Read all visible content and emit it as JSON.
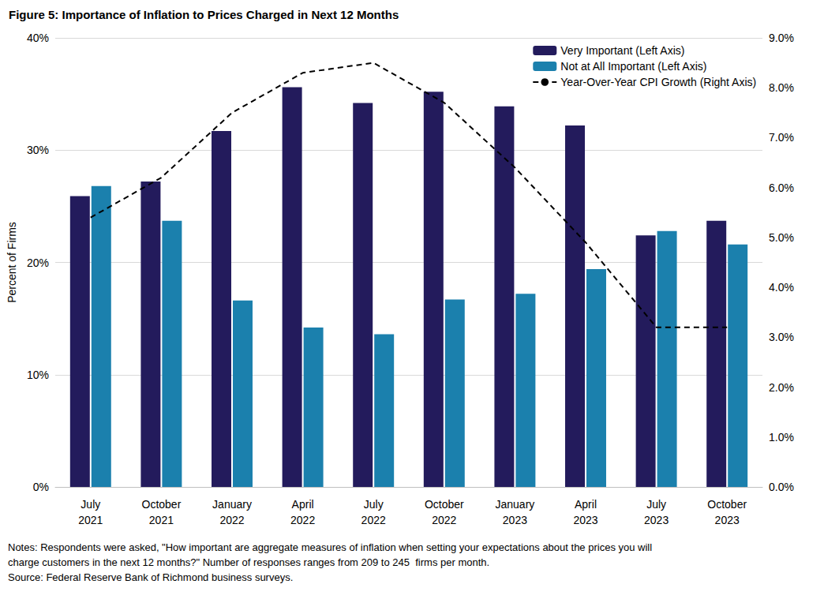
{
  "chart_data": {
    "type": "bar",
    "title": "Figure 5: Importance of Inflation to Prices Charged in Next 12 Months",
    "notes": [
      "Notes: Respondents were asked, \"How important are aggregate measures of inflation when setting your expectations about the prices you will",
      "charge customers in the next 12 months?\" Number of responses ranges from 209 to 245  firms per month."
    ],
    "source": "Source: Federal Reserve Bank of Richmond business surveys.",
    "y_label": "Percent of Firms",
    "categories": [
      "July\n2021",
      "October\n2021",
      "January\n2022",
      "April\n2022",
      "July\n2022",
      "October\n2022",
      "January\n2023",
      "April\n2023",
      "July\n2023",
      "October\n2023"
    ],
    "series": [
      {
        "name": "Very Important (Left Axis)",
        "type": "bar",
        "color": "#231b5c",
        "values": [
          25.9,
          27.2,
          31.7,
          35.6,
          34.2,
          35.2,
          33.9,
          32.2,
          22.4,
          23.7
        ]
      },
      {
        "name": "Not at All Important (Left Axis)",
        "type": "bar",
        "color": "#1b80ad",
        "values": [
          26.8,
          23.7,
          16.6,
          14.2,
          13.6,
          16.7,
          17.2,
          19.4,
          22.8,
          21.6
        ]
      },
      {
        "name": "Year-Over-Year CPI Growth (Right Axis)",
        "type": "line",
        "axis": "y2",
        "color": "#000000",
        "line_style": "dashed",
        "values": [
          5.4,
          6.2,
          7.5,
          8.3,
          8.5,
          7.7,
          6.4,
          4.9,
          3.2,
          3.2
        ]
      }
    ],
    "ylim": [
      0,
      40
    ],
    "yticks": [
      {
        "value": 0,
        "label": "0%"
      },
      {
        "value": 10,
        "label": "10%"
      },
      {
        "value": 20,
        "label": "20%"
      },
      {
        "value": 30,
        "label": "30%"
      },
      {
        "value": 40,
        "label": "40%"
      }
    ],
    "y2lim": [
      0,
      9
    ],
    "y2ticks": [
      {
        "value": 0,
        "label": "0.0%"
      },
      {
        "value": 1,
        "label": "1.0%"
      },
      {
        "value": 2,
        "label": "2.0%"
      },
      {
        "value": 3,
        "label": "3.0%"
      },
      {
        "value": 4,
        "label": "4.0%"
      },
      {
        "value": 5,
        "label": "5.0%"
      },
      {
        "value": 6,
        "label": "6.0%"
      },
      {
        "value": 7,
        "label": "7.0%"
      },
      {
        "value": 8,
        "label": "8.0%"
      },
      {
        "value": 9,
        "label": "9.0%"
      }
    ],
    "grid": true,
    "legend": "upper right"
  }
}
